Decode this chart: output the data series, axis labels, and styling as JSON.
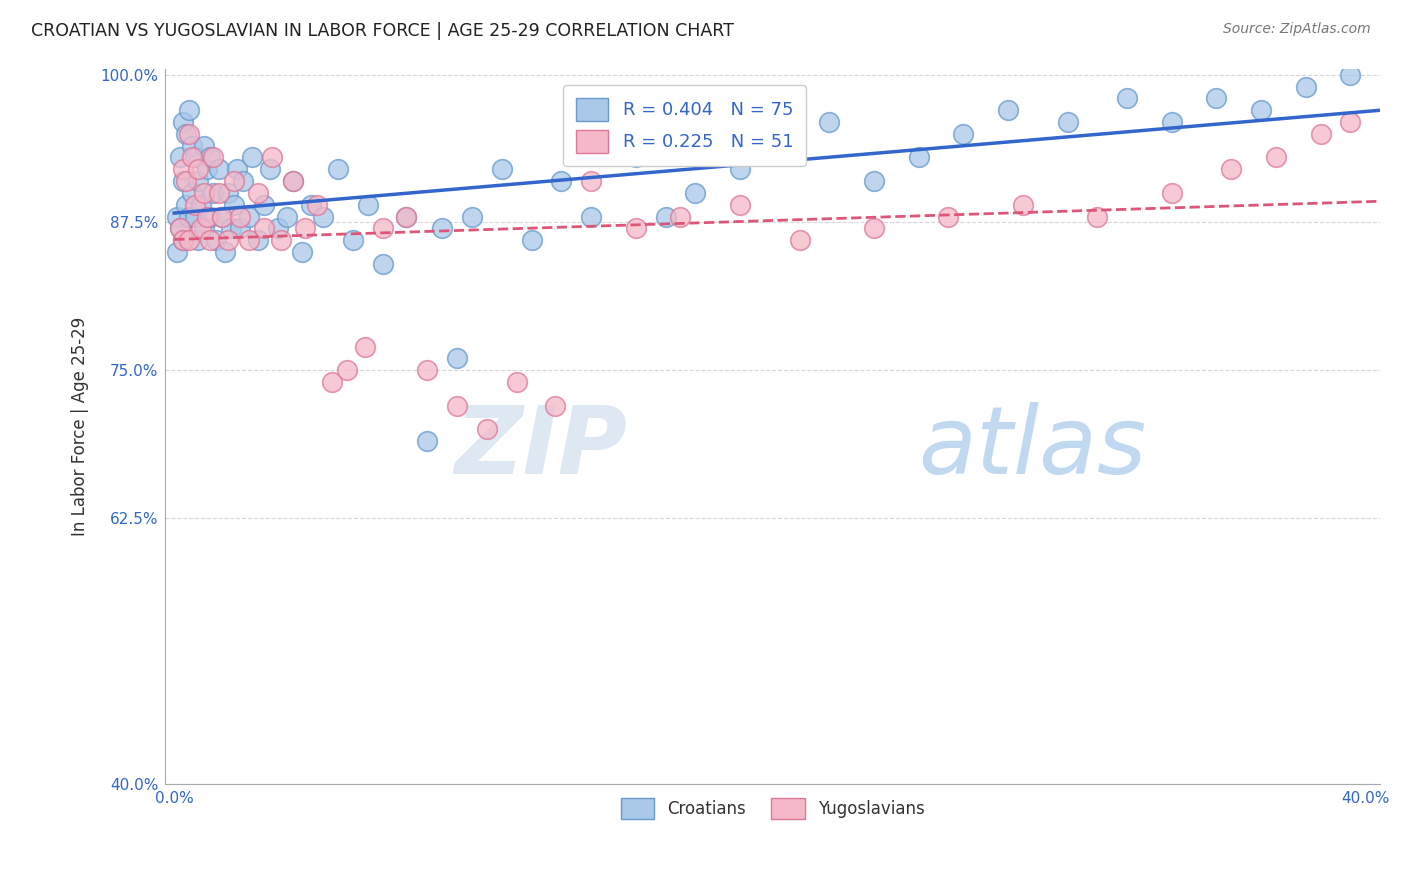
{
  "title": "CROATIAN VS YUGOSLAVIAN IN LABOR FORCE | AGE 25-29 CORRELATION CHART",
  "source": "Source: ZipAtlas.com",
  "ylabel": "In Labor Force | Age 25-29",
  "xlim": [
    -0.003,
    0.405
  ],
  "ylim": [
    0.4,
    1.005
  ],
  "xticks": [
    0.0,
    0.05,
    0.1,
    0.15,
    0.2,
    0.25,
    0.3,
    0.35,
    0.4
  ],
  "xticklabels": [
    "0.0%",
    "",
    "",
    "",
    "",
    "",
    "",
    "",
    "40.0%"
  ],
  "yticks": [
    0.4,
    0.625,
    0.75,
    0.875,
    1.0
  ],
  "yticklabels": [
    "40.0%",
    "62.5%",
    "75.0%",
    "87.5%",
    "100.0%"
  ],
  "croatian_R": 0.404,
  "croatian_N": 75,
  "yugoslavian_R": 0.225,
  "yugoslavian_N": 51,
  "croatian_color": "#aac8e8",
  "croatian_edge": "#6699cc",
  "yugoslavian_color": "#f5b8c8",
  "yugoslavian_edge": "#dd7799",
  "trend_croatian_color": "#3366cc",
  "trend_yugoslavian_color": "#dd5577",
  "background_color": "#ffffff",
  "grid_color": "#cccccc",
  "axis_label_color": "#3366cc",
  "croatians_x": [
    0.001,
    0.001,
    0.002,
    0.002,
    0.003,
    0.003,
    0.003,
    0.004,
    0.004,
    0.005,
    0.005,
    0.006,
    0.006,
    0.007,
    0.007,
    0.008,
    0.008,
    0.009,
    0.01,
    0.01,
    0.011,
    0.012,
    0.012,
    0.013,
    0.014,
    0.015,
    0.016,
    0.017,
    0.018,
    0.019,
    0.02,
    0.021,
    0.022,
    0.023,
    0.025,
    0.026,
    0.028,
    0.03,
    0.032,
    0.035,
    0.038,
    0.04,
    0.043,
    0.046,
    0.05,
    0.055,
    0.06,
    0.065,
    0.07,
    0.078,
    0.085,
    0.09,
    0.095,
    0.1,
    0.11,
    0.12,
    0.13,
    0.14,
    0.155,
    0.165,
    0.175,
    0.19,
    0.205,
    0.22,
    0.235,
    0.25,
    0.265,
    0.28,
    0.3,
    0.32,
    0.335,
    0.35,
    0.365,
    0.38,
    0.395
  ],
  "croatians_y": [
    0.88,
    0.85,
    0.93,
    0.87,
    0.96,
    0.91,
    0.86,
    0.95,
    0.89,
    0.97,
    0.88,
    0.94,
    0.9,
    0.93,
    0.88,
    0.91,
    0.86,
    0.89,
    0.94,
    0.87,
    0.92,
    0.88,
    0.93,
    0.9,
    0.86,
    0.92,
    0.88,
    0.85,
    0.9,
    0.87,
    0.89,
    0.92,
    0.87,
    0.91,
    0.88,
    0.93,
    0.86,
    0.89,
    0.92,
    0.87,
    0.88,
    0.91,
    0.85,
    0.89,
    0.88,
    0.92,
    0.86,
    0.89,
    0.84,
    0.88,
    0.69,
    0.87,
    0.76,
    0.88,
    0.92,
    0.86,
    0.91,
    0.88,
    0.93,
    0.88,
    0.9,
    0.92,
    0.94,
    0.96,
    0.91,
    0.93,
    0.95,
    0.97,
    0.96,
    0.98,
    0.96,
    0.98,
    0.97,
    0.99,
    1.0
  ],
  "yugoslavians_x": [
    0.002,
    0.003,
    0.003,
    0.004,
    0.005,
    0.005,
    0.006,
    0.007,
    0.008,
    0.009,
    0.01,
    0.011,
    0.012,
    0.013,
    0.015,
    0.016,
    0.018,
    0.02,
    0.022,
    0.025,
    0.028,
    0.03,
    0.033,
    0.036,
    0.04,
    0.044,
    0.048,
    0.053,
    0.058,
    0.064,
    0.07,
    0.078,
    0.085,
    0.095,
    0.105,
    0.115,
    0.128,
    0.14,
    0.155,
    0.17,
    0.19,
    0.21,
    0.235,
    0.26,
    0.285,
    0.31,
    0.335,
    0.355,
    0.37,
    0.385,
    0.395
  ],
  "yugoslavians_y": [
    0.87,
    0.92,
    0.86,
    0.91,
    0.95,
    0.86,
    0.93,
    0.89,
    0.92,
    0.87,
    0.9,
    0.88,
    0.86,
    0.93,
    0.9,
    0.88,
    0.86,
    0.91,
    0.88,
    0.86,
    0.9,
    0.87,
    0.93,
    0.86,
    0.91,
    0.87,
    0.89,
    0.74,
    0.75,
    0.77,
    0.87,
    0.88,
    0.75,
    0.72,
    0.7,
    0.74,
    0.72,
    0.91,
    0.87,
    0.88,
    0.89,
    0.86,
    0.87,
    0.88,
    0.89,
    0.88,
    0.9,
    0.92,
    0.93,
    0.95,
    0.96
  ]
}
